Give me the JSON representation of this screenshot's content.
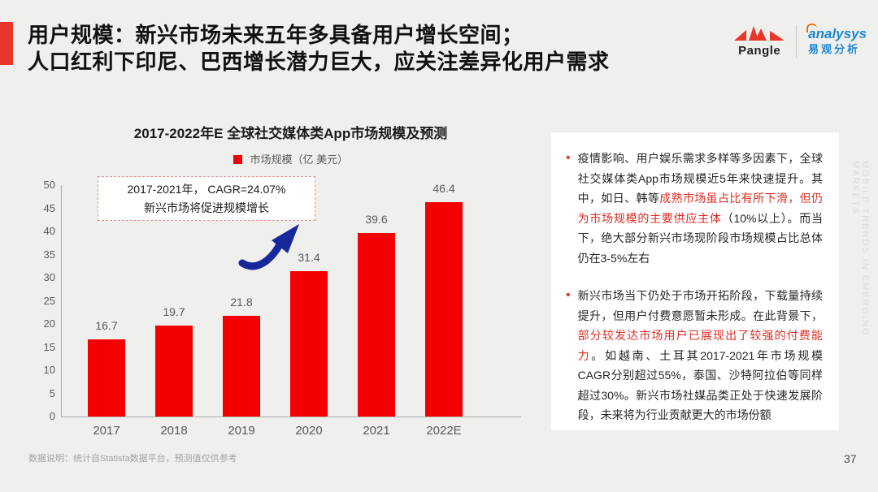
{
  "slide": {
    "title_line1": "用户规模：新兴市场未来五年多具备用户增长空间；",
    "title_line2": "人口红利下印尼、巴西增长潜力巨大，应关注差异化用户需求",
    "watermark": "MOBILE TRENDS IN EMERGING MARKETS",
    "footnote": "数据说明：统计自Statista数据平台，预测值仅供参考",
    "page_number": "37"
  },
  "logos": {
    "pangle_label": "Pangle",
    "analysys_name": "analysys",
    "analysys_cn": "易观分析"
  },
  "chart_data": {
    "type": "bar",
    "title": "2017-2022年E 全球社交媒体类App市场规模及预测",
    "legend": "市场规模（亿 美元）",
    "categories": [
      "2017",
      "2018",
      "2019",
      "2020",
      "2021",
      "2022E"
    ],
    "values": [
      16.7,
      19.7,
      21.8,
      31.4,
      39.6,
      46.4
    ],
    "ylabel": "",
    "xlabel": "",
    "ylim": [
      0,
      50
    ],
    "ytick_step": 5,
    "grid": false,
    "legend_position": "top-center",
    "annotation": {
      "line1": "2017-2021年， CAGR=24.07%",
      "line2": "新兴市场将促进规模增长"
    }
  },
  "insights": {
    "bullets": [
      {
        "segments": [
          {
            "text": "疫情影响、用户娱乐需求多样等多因素下，全球社交媒体类App市场规模近5年来快速提升。其中，如日、韩等",
            "hl": false
          },
          {
            "text": "成熟市场虽占比有所下滑，但仍为市场规模的主要供应主体",
            "hl": true
          },
          {
            "text": "（10%以上）。而当下，绝大部分新兴市场现阶段市场规模占比总体仍在3-5%左右",
            "hl": false
          }
        ]
      },
      {
        "segments": [
          {
            "text": "新兴市场当下仍处于市场开拓阶段，下载量持续提升，但用户付费意愿暂未形成。在此背景下，",
            "hl": false
          },
          {
            "text": "部分较发达市场用户已展现出了较强的付费能力",
            "hl": true
          },
          {
            "text": "。如越南、土耳其2017-2021年市场规模CAGR分别超过55%，泰国、沙特阿拉伯等同样超过30%。新兴市场社媒品类正处于快速发展阶段，未来将为行业贡献更大的市场份额",
            "hl": false
          }
        ]
      }
    ]
  },
  "colors": {
    "bar_red": "#F40000",
    "accent_red": "#E8362A",
    "highlight_red": "#DF2D24",
    "arrow_blue": "#17289B",
    "analysys_blue": "#1E86D0",
    "pangle_red": "#E8362A",
    "background": "#EFEFED"
  }
}
